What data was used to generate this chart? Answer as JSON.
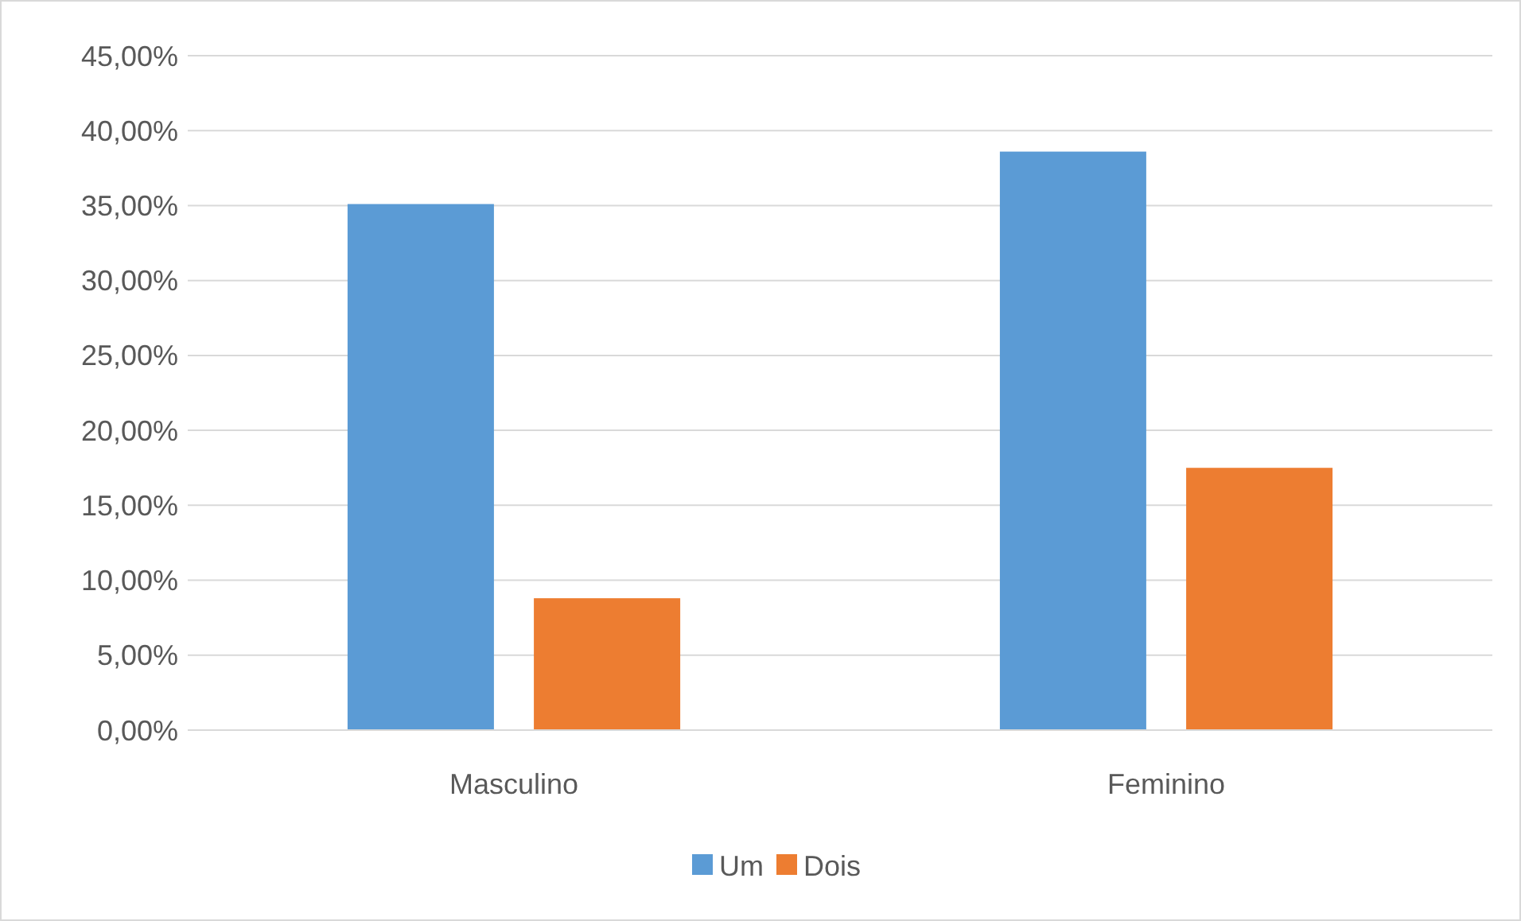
{
  "chart_data": {
    "type": "bar",
    "categories": [
      "Masculino",
      "Feminino"
    ],
    "series": [
      {
        "name": "Um",
        "color": "#5b9bd5",
        "values": [
          35.1,
          38.6
        ]
      },
      {
        "name": "Dois",
        "color": "#ed7d31",
        "values": [
          8.8,
          17.5
        ]
      }
    ],
    "ylim": [
      0,
      45
    ],
    "yticks": [
      {
        "value": 0,
        "label": "0,00%"
      },
      {
        "value": 5,
        "label": "5,00%"
      },
      {
        "value": 10,
        "label": "10,00%"
      },
      {
        "value": 15,
        "label": "15,00%"
      },
      {
        "value": 20,
        "label": "20,00%"
      },
      {
        "value": 25,
        "label": "25,00%"
      },
      {
        "value": 30,
        "label": "30,00%"
      },
      {
        "value": 35,
        "label": "35,00%"
      },
      {
        "value": 40,
        "label": "40,00%"
      },
      {
        "value": 45,
        "label": "45,00%"
      }
    ],
    "grid": "y",
    "legend": "bottom"
  }
}
